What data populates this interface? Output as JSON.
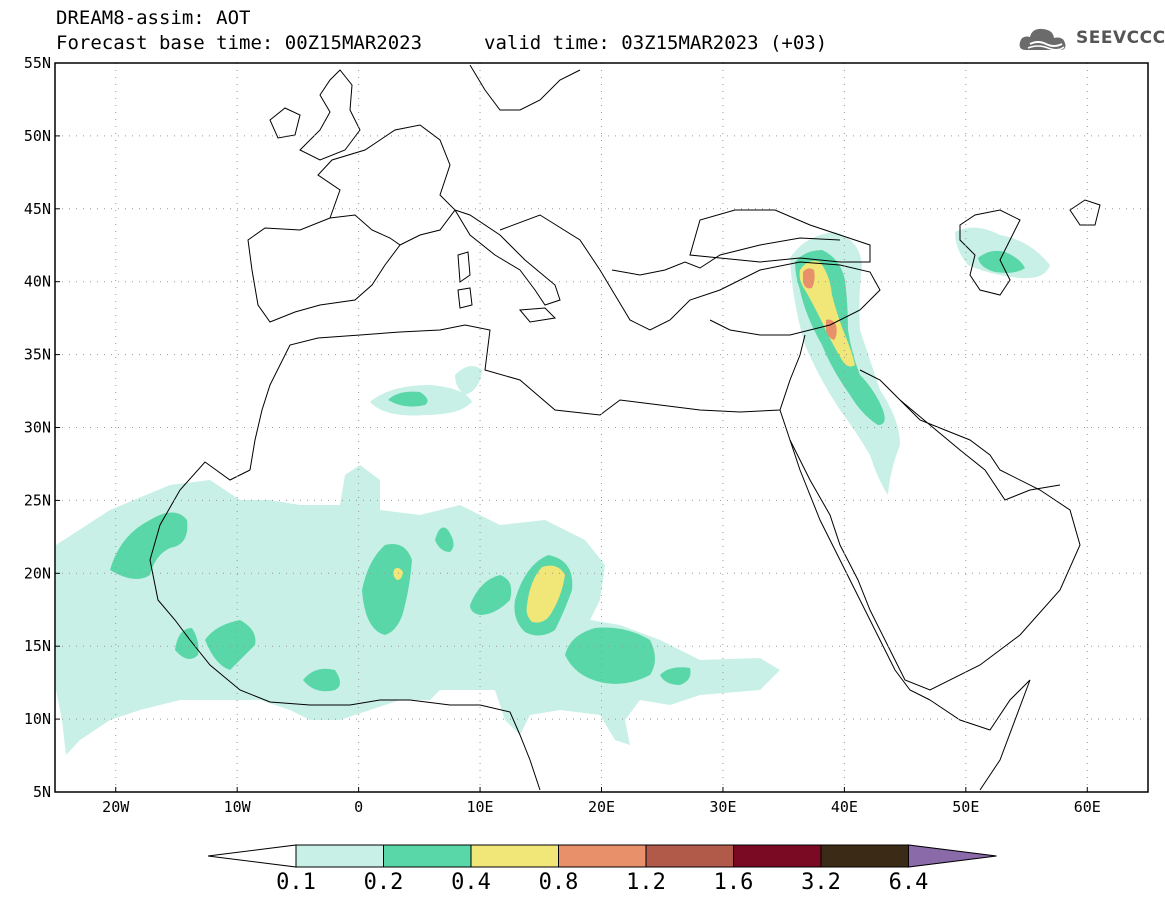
{
  "header": {
    "title": "DREAM8-assim: AOT",
    "base_time": "Forecast base time: 00Z15MAR2023",
    "valid_time": "valid time: 03Z15MAR2023 (+03)"
  },
  "logo": {
    "text": "SEEVCCC",
    "icon": "cloud-logo-icon"
  },
  "map": {
    "lon_range": [
      -25,
      65
    ],
    "lat_range": [
      5,
      55
    ],
    "lon_ticks": [
      {
        "value": -20,
        "label": "20W"
      },
      {
        "value": -10,
        "label": "10W"
      },
      {
        "value": 0,
        "label": "0"
      },
      {
        "value": 10,
        "label": "10E"
      },
      {
        "value": 20,
        "label": "20E"
      },
      {
        "value": 30,
        "label": "30E"
      },
      {
        "value": 40,
        "label": "40E"
      },
      {
        "value": 50,
        "label": "50E"
      },
      {
        "value": 60,
        "label": "60E"
      }
    ],
    "lat_ticks": [
      {
        "value": 5,
        "label": "5N"
      },
      {
        "value": 10,
        "label": "10N"
      },
      {
        "value": 15,
        "label": "15N"
      },
      {
        "value": 20,
        "label": "20N"
      },
      {
        "value": 25,
        "label": "25N"
      },
      {
        "value": 30,
        "label": "30N"
      },
      {
        "value": 35,
        "label": "35N"
      },
      {
        "value": 40,
        "label": "40N"
      },
      {
        "value": 45,
        "label": "45N"
      },
      {
        "value": 50,
        "label": "50N"
      },
      {
        "value": 55,
        "label": "55N"
      }
    ],
    "grid": true
  },
  "colorbar": {
    "levels": [
      "0.1",
      "0.2",
      "0.4",
      "0.8",
      "1.2",
      "1.6",
      "3.2",
      "6.4"
    ],
    "colors": [
      "#c8f0e6",
      "#5ad7a8",
      "#f1e678",
      "#e8906a",
      "#b25a4a",
      "#7a0a24",
      "#3a2a16",
      "#8a6aa8"
    ]
  }
}
